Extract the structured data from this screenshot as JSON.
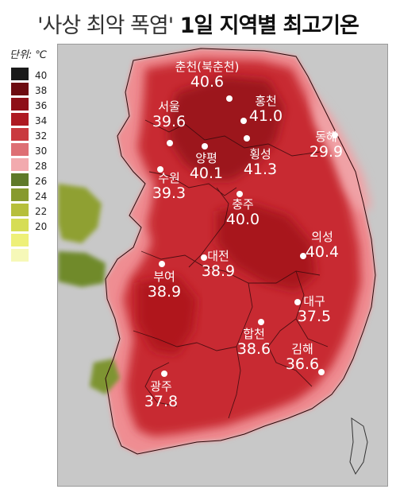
{
  "title": {
    "quote_open": "'",
    "main": "사상 최악 폭염",
    "quote_close": "'",
    "sub": " 1일 지역별 최고기온"
  },
  "legend": {
    "unit_label": "단위: ℃",
    "ticks": [
      "40",
      "38",
      "36",
      "34",
      "32",
      "30",
      "28",
      "26",
      "24",
      "22",
      "20"
    ],
    "colors": [
      "#1a1a1a",
      "#6d0b10",
      "#8e0f17",
      "#ae1a22",
      "#c93a3f",
      "#de6f74",
      "#f2aaae",
      "#5f7a2a",
      "#879a2e",
      "#b6bf3a",
      "#d6dd55",
      "#eef078",
      "#f6f8b8"
    ]
  },
  "cities": [
    {
      "name": "춘천(북춘천)",
      "temp": "40.6"
    },
    {
      "name": "서울",
      "temp": "39.6"
    },
    {
      "name": "홍천",
      "temp": "41.0"
    },
    {
      "name": "동해",
      "temp": "29.9"
    },
    {
      "name": "양평",
      "temp": "40.1"
    },
    {
      "name": "횡성",
      "temp": "41.3"
    },
    {
      "name": "수원",
      "temp": "39.3"
    },
    {
      "name": "충주",
      "temp": "40.0"
    },
    {
      "name": "의성",
      "temp": "40.4"
    },
    {
      "name": "대전",
      "temp": "38.9"
    },
    {
      "name": "부여",
      "temp": "38.9"
    },
    {
      "name": "대구",
      "temp": "37.5"
    },
    {
      "name": "합천",
      "temp": "38.6"
    },
    {
      "name": "김해",
      "temp": "36.6"
    },
    {
      "name": "광주",
      "temp": "37.8"
    }
  ]
}
